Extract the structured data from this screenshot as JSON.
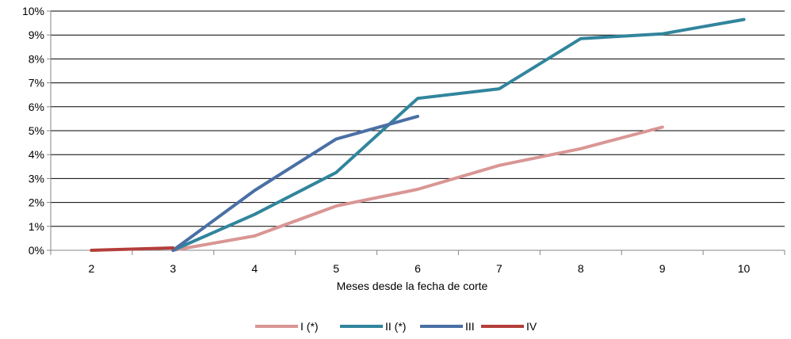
{
  "chart_data": {
    "type": "line",
    "title": "",
    "xlabel": "Meses desde la fecha de corte",
    "ylabel": "",
    "categories": [
      2,
      3,
      4,
      5,
      6,
      7,
      8,
      9,
      10
    ],
    "y_ticks": [
      "0%",
      "1%",
      "2%",
      "3%",
      "4%",
      "5%",
      "6%",
      "7%",
      "8%",
      "9%",
      "10%"
    ],
    "ylim": [
      0,
      10
    ],
    "y_unit": "%",
    "grid": "horizontal",
    "legend_position": "bottom",
    "series": [
      {
        "name": "I (*)",
        "color": "#d99694",
        "x": [
          3,
          4,
          5,
          6,
          7,
          8,
          9
        ],
        "values": [
          0.0,
          0.6,
          1.85,
          2.55,
          3.55,
          4.25,
          5.15
        ]
      },
      {
        "name": "II (*)",
        "color": "#31859c",
        "x": [
          3,
          4,
          5,
          6,
          7,
          8,
          9,
          10
        ],
        "values": [
          0.0,
          1.5,
          3.25,
          6.35,
          6.75,
          8.85,
          9.05,
          9.65
        ]
      },
      {
        "name": "III",
        "color": "#4a6fa5",
        "x": [
          3,
          4,
          5,
          6
        ],
        "values": [
          0.0,
          2.5,
          4.65,
          5.6
        ]
      },
      {
        "name": "IV",
        "color": "#b43e3a",
        "x": [
          2,
          3
        ],
        "values": [
          0.0,
          0.1
        ]
      }
    ]
  }
}
